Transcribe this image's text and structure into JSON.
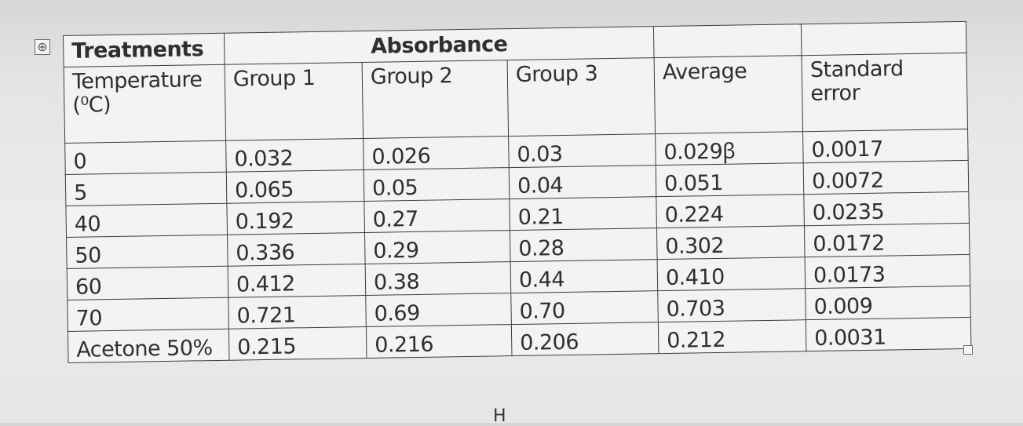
{
  "table_handle_glyph": "⊕",
  "table": {
    "header_row1": {
      "treatments": "Treatments",
      "absorbance": "Absorbance"
    },
    "header_row2": {
      "temperature": "Temperature (⁰C)",
      "group1": "Group 1",
      "group2": "Group 2",
      "group3": "Group 3",
      "average": "Average",
      "standard_error": "Standard error"
    },
    "rows": [
      {
        "treatment": "0",
        "g1": "0.032",
        "g2": "0.026",
        "g3": "0.03",
        "avg": "0.029ꞵ",
        "se": "0.0017"
      },
      {
        "treatment": "5",
        "g1": "0.065",
        "g2": "0.05",
        "g3": "0.04",
        "avg": "0.051",
        "se": "0.0072"
      },
      {
        "treatment": "40",
        "g1": "0.192",
        "g2": "0.27",
        "g3": "0.21",
        "avg": "0.224",
        "se": "0.0235"
      },
      {
        "treatment": "50",
        "g1": "0.336",
        "g2": "0.29",
        "g3": "0.28",
        "avg": "0.302",
        "se": "0.0172"
      },
      {
        "treatment": "60",
        "g1": "0.412",
        "g2": "0.38",
        "g3": "0.44",
        "avg": "0.410",
        "se": "0.0173"
      },
      {
        "treatment": "70",
        "g1": "0.721",
        "g2": "0.69",
        "g3": "0.70",
        "avg": "0.703",
        "se": "0.009"
      },
      {
        "treatment": "Acetone 50%",
        "g1": "0.215",
        "g2": "0.216",
        "g3": "0.206",
        "avg": "0.212",
        "se": "0.0031"
      }
    ]
  },
  "footer_mark": "H"
}
